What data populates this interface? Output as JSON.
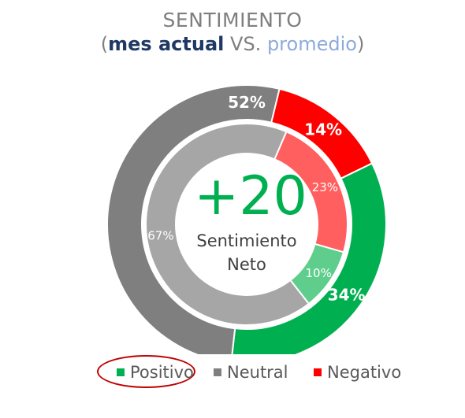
{
  "chart_data": {
    "type": "donut",
    "title": "SENTIMIENTO",
    "subtitle": {
      "open": "(",
      "current": "mes actual",
      "vs": " VS. ",
      "average": "promedio",
      "close": ")"
    },
    "categories": [
      "Positivo",
      "Neutral",
      "Negativo"
    ],
    "series": [
      {
        "name": "mes actual",
        "values": [
          34,
          52,
          14
        ],
        "labels": [
          "34%",
          "52%",
          "14%"
        ],
        "colors": [
          "#00b050",
          "#7f7f7f",
          "#ff0000"
        ]
      },
      {
        "name": "promedio",
        "values": [
          10,
          67,
          23
        ],
        "labels": [
          "10%",
          "67%",
          "23%"
        ],
        "colors": [
          "#5fce8c",
          "#a6a6a6",
          "#ff5f5f"
        ]
      }
    ],
    "center": {
      "value": "+20",
      "label_line1": "Sentimiento",
      "label_line2": "Neto",
      "color": "#00b050"
    },
    "legend": {
      "position": "bottom",
      "items": [
        {
          "label": "Positivo",
          "color": "#00b050",
          "highlighted": true
        },
        {
          "label": "Neutral",
          "color": "#7f7f7f"
        },
        {
          "label": "Negativo",
          "color": "#ff0000"
        }
      ]
    }
  }
}
